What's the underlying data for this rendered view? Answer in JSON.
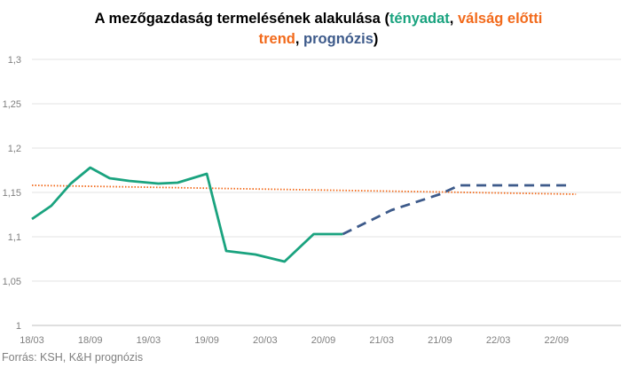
{
  "chart_data": {
    "type": "line",
    "title_parts": [
      {
        "text": "A mezőgazdaság termelésének alakulása (",
        "color": "#000000"
      },
      {
        "text": "tényadat",
        "color": "#1aa37f"
      },
      {
        "text": ", ",
        "color": "#000000"
      },
      {
        "text": "válság előtti",
        "color": "#f26a1b"
      },
      {
        "text": " trend",
        "color": "#f26a1b"
      },
      {
        "text": ", ",
        "color": "#000000"
      },
      {
        "text": "prognózis",
        "color": "#3d5a8a"
      },
      {
        "text": ")",
        "color": "#000000"
      }
    ],
    "x_tick_labels": [
      "18/03",
      "18/09",
      "19/03",
      "19/09",
      "20/03",
      "20/09",
      "21/03",
      "21/09",
      "22/03",
      "22/09"
    ],
    "y_tick_labels": [
      "1",
      "1,05",
      "1,1",
      "1,15",
      "1,2",
      "1,25",
      "1,3"
    ],
    "ylim": [
      1,
      1.3
    ],
    "grid": true,
    "series": [
      {
        "style": "solid",
        "color": "#1aa37f",
        "x": [
          "18/03",
          "18/05",
          "18/07",
          "18/09",
          "18/11",
          "19/01",
          "19/04",
          "19/06",
          "19/09",
          "19/11",
          "20/02",
          "20/05",
          "20/08",
          "20/11"
        ],
        "values": [
          1.12,
          1.135,
          1.16,
          1.178,
          1.166,
          1.163,
          1.16,
          1.161,
          1.171,
          1.084,
          1.08,
          1.072,
          1.103,
          1.103
        ]
      },
      {
        "style": "dashed",
        "color": "#3d5a8a",
        "x": [
          "20/11",
          "21/04",
          "21/09",
          "21/11",
          "22/02",
          "22/05",
          "22/08",
          "22/10"
        ],
        "values": [
          1.103,
          1.13,
          1.148,
          1.158,
          1.158,
          1.158,
          1.158,
          1.158
        ]
      },
      {
        "style": "dotted",
        "color": "#f26a1b",
        "x": [
          "18/03",
          "22/11"
        ],
        "values": [
          1.158,
          1.148
        ]
      }
    ],
    "source": "Forrás: KSH, K&H prognózis"
  }
}
